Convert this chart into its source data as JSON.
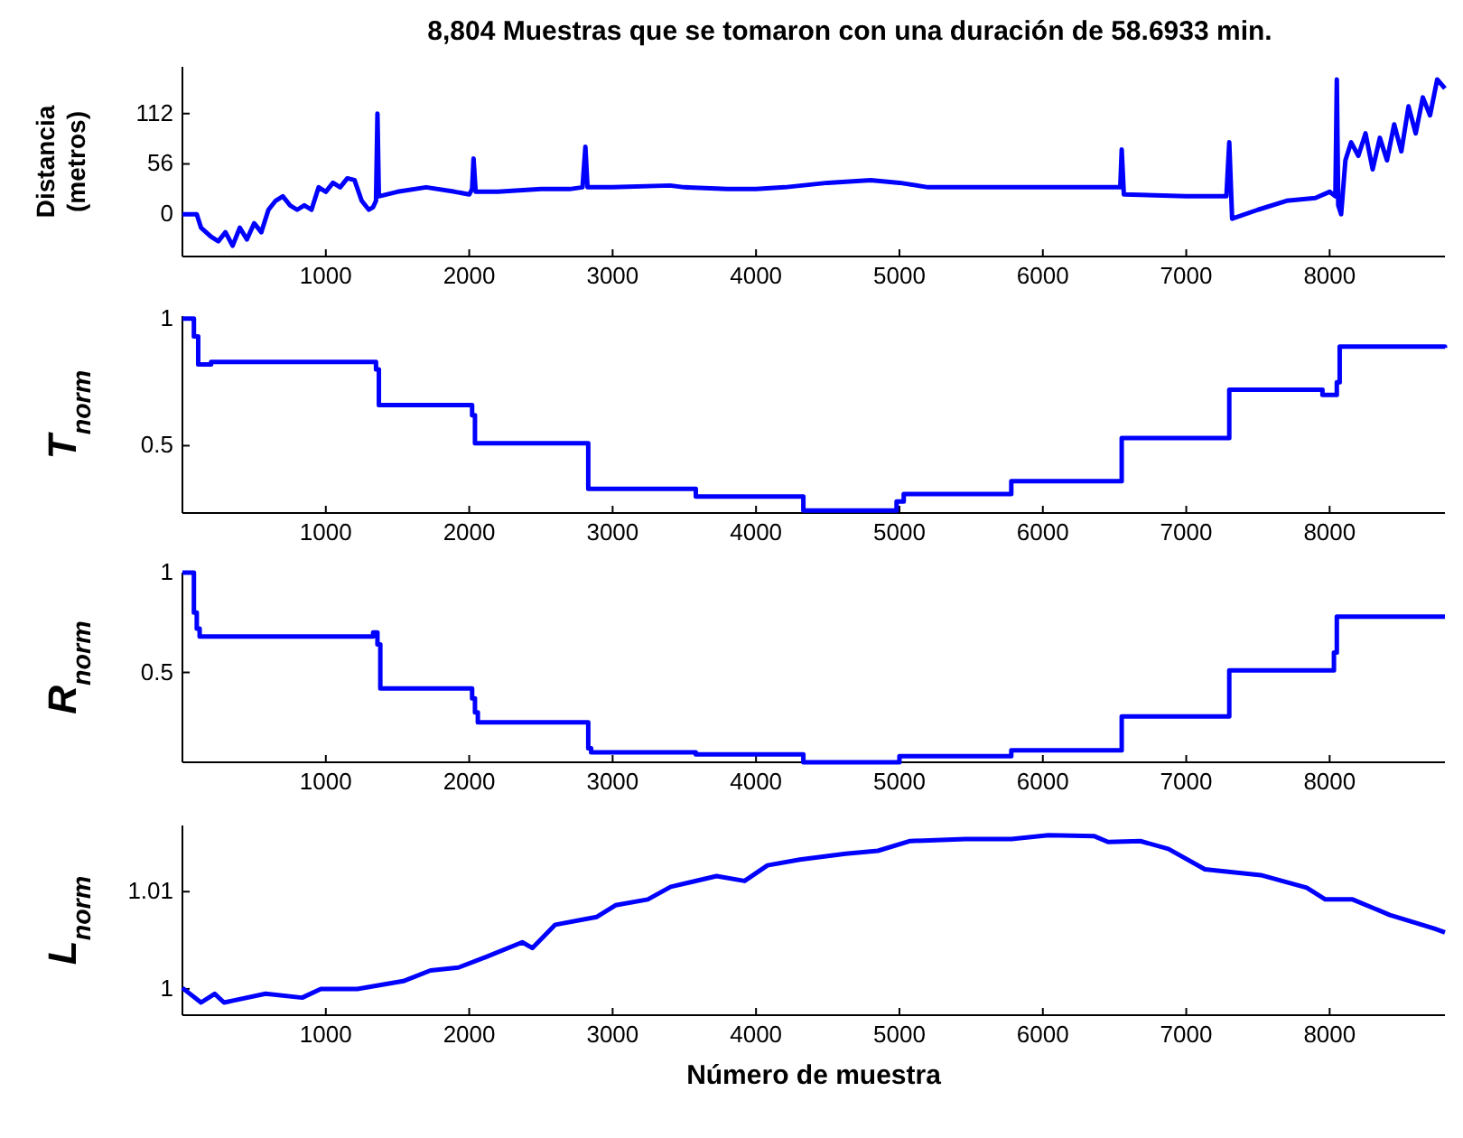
{
  "chart_data": [
    {
      "type": "line",
      "title": "8,804 Muestras que se tomaron con una duración de 58.6933 min.",
      "ylabel": "Distancia\n(metros)",
      "xlim": [
        0,
        8804
      ],
      "xticks": [
        1000,
        2000,
        3000,
        4000,
        5000,
        6000,
        7000,
        8000
      ],
      "ylim": [
        -47,
        164
      ],
      "yticks": [
        0,
        56,
        112
      ],
      "grid": false,
      "x": [
        0,
        100,
        130,
        200,
        250,
        300,
        350,
        400,
        450,
        500,
        550,
        600,
        650,
        700,
        750,
        800,
        850,
        900,
        950,
        1000,
        1050,
        1100,
        1150,
        1200,
        1250,
        1300,
        1330,
        1350,
        1360,
        1370,
        1500,
        1700,
        1900,
        2000,
        2020,
        2030,
        2045,
        2200,
        2500,
        2700,
        2790,
        2810,
        2825,
        3000,
        3400,
        3500,
        3800,
        4000,
        4200,
        4500,
        4800,
        5000,
        5200,
        5600,
        6000,
        6400,
        6540,
        6550,
        6565,
        7000,
        7280,
        7300,
        7320,
        7500,
        7700,
        7900,
        8000,
        8040,
        8050,
        8060,
        8080,
        8110,
        8150,
        8200,
        8250,
        8300,
        8350,
        8400,
        8450,
        8500,
        8550,
        8600,
        8650,
        8700,
        8750,
        8804
      ],
      "series": [
        {
          "color": "#0000ff",
          "values": [
            0,
            0,
            -15,
            -25,
            -30,
            -20,
            -35,
            -15,
            -28,
            -10,
            -20,
            5,
            15,
            20,
            10,
            5,
            10,
            5,
            30,
            25,
            35,
            30,
            40,
            38,
            15,
            5,
            8,
            15,
            112,
            20,
            25,
            30,
            25,
            22,
            28,
            62,
            25,
            25,
            28,
            28,
            30,
            75,
            30,
            30,
            32,
            30,
            28,
            28,
            30,
            35,
            38,
            35,
            30,
            30,
            30,
            30,
            30,
            72,
            22,
            20,
            20,
            80,
            -5,
            5,
            15,
            18,
            25,
            20,
            150,
            10,
            0,
            60,
            80,
            65,
            90,
            50,
            85,
            60,
            100,
            70,
            120,
            90,
            130,
            110,
            150,
            140
          ]
        }
      ]
    },
    {
      "type": "step",
      "ylabel": "T$_{norm}$",
      "xlim": [
        0,
        8804
      ],
      "xticks": [
        1000,
        2000,
        3000,
        4000,
        5000,
        6000,
        7000,
        8000
      ],
      "ylim": [
        0.235,
        1.01
      ],
      "yticks": [
        0.5,
        1
      ],
      "grid": false,
      "x": [
        0,
        80,
        110,
        200,
        1350,
        1370,
        2020,
        2040,
        2830,
        3580,
        4330,
        4980,
        5030,
        5780,
        6550,
        7300,
        7950,
        8050,
        8070,
        8804
      ],
      "series": [
        {
          "color": "#0000ff",
          "values": [
            1,
            0.93,
            0.82,
            0.83,
            0.8,
            0.66,
            0.62,
            0.51,
            0.33,
            0.3,
            0.245,
            0.28,
            0.31,
            0.36,
            0.53,
            0.72,
            0.7,
            0.75,
            0.89,
            0.885
          ]
        }
      ]
    },
    {
      "type": "step",
      "ylabel": "R$_{norm}$",
      "xlim": [
        0,
        8804
      ],
      "xticks": [
        1000,
        2000,
        3000,
        4000,
        5000,
        6000,
        7000,
        8000
      ],
      "ylim": [
        0.05,
        1.0
      ],
      "yticks": [
        0.5,
        1
      ],
      "grid": false,
      "x": [
        0,
        80,
        100,
        120,
        1330,
        1360,
        1380,
        2020,
        2040,
        2060,
        2830,
        2850,
        3580,
        4330,
        5000,
        5780,
        6550,
        7300,
        8030,
        8050,
        8804
      ],
      "series": [
        {
          "color": "#0000ff",
          "values": [
            1,
            0.8,
            0.72,
            0.68,
            0.7,
            0.64,
            0.42,
            0.37,
            0.3,
            0.25,
            0.12,
            0.1,
            0.09,
            0.05,
            0.08,
            0.11,
            0.28,
            0.51,
            0.6,
            0.78,
            0.78
          ]
        }
      ]
    },
    {
      "type": "line",
      "ylabel": "L$_{norm}$",
      "xlabel": "Número de muestra",
      "xlim": [
        0,
        8804
      ],
      "xticks": [
        1000,
        2000,
        3000,
        4000,
        5000,
        6000,
        7000,
        8000
      ],
      "ylim": [
        0.9973,
        1.0168
      ],
      "yticks": [
        1,
        1.01
      ],
      "grid": false,
      "x": [
        0,
        130,
        225,
        290,
        580,
        835,
        965,
        1220,
        1540,
        1730,
        1925,
        2120,
        2370,
        2440,
        2600,
        2890,
        3020,
        3245,
        3405,
        3725,
        3920,
        4080,
        4305,
        4625,
        4850,
        5075,
        5460,
        5780,
        6040,
        6360,
        6455,
        6680,
        6875,
        7130,
        7520,
        7840,
        7970,
        8160,
        8420,
        8730,
        8804
      ],
      "series": [
        {
          "color": "#0000ff",
          "values": [
            1.0001,
            0.9986,
            0.9995,
            0.9986,
            0.9995,
            0.9991,
            1.0,
            1.0,
            1.0008,
            1.0019,
            1.0022,
            1.0033,
            1.0048,
            1.0042,
            1.0066,
            1.0074,
            1.0086,
            1.0092,
            1.0105,
            1.0116,
            1.0111,
            1.0127,
            1.0133,
            1.0139,
            1.0142,
            1.0152,
            1.0154,
            1.0154,
            1.0158,
            1.0157,
            1.0151,
            1.0152,
            1.0144,
            1.0123,
            1.0117,
            1.0104,
            1.0092,
            1.0092,
            1.0076,
            1.0062,
            1.0058
          ]
        }
      ]
    }
  ]
}
